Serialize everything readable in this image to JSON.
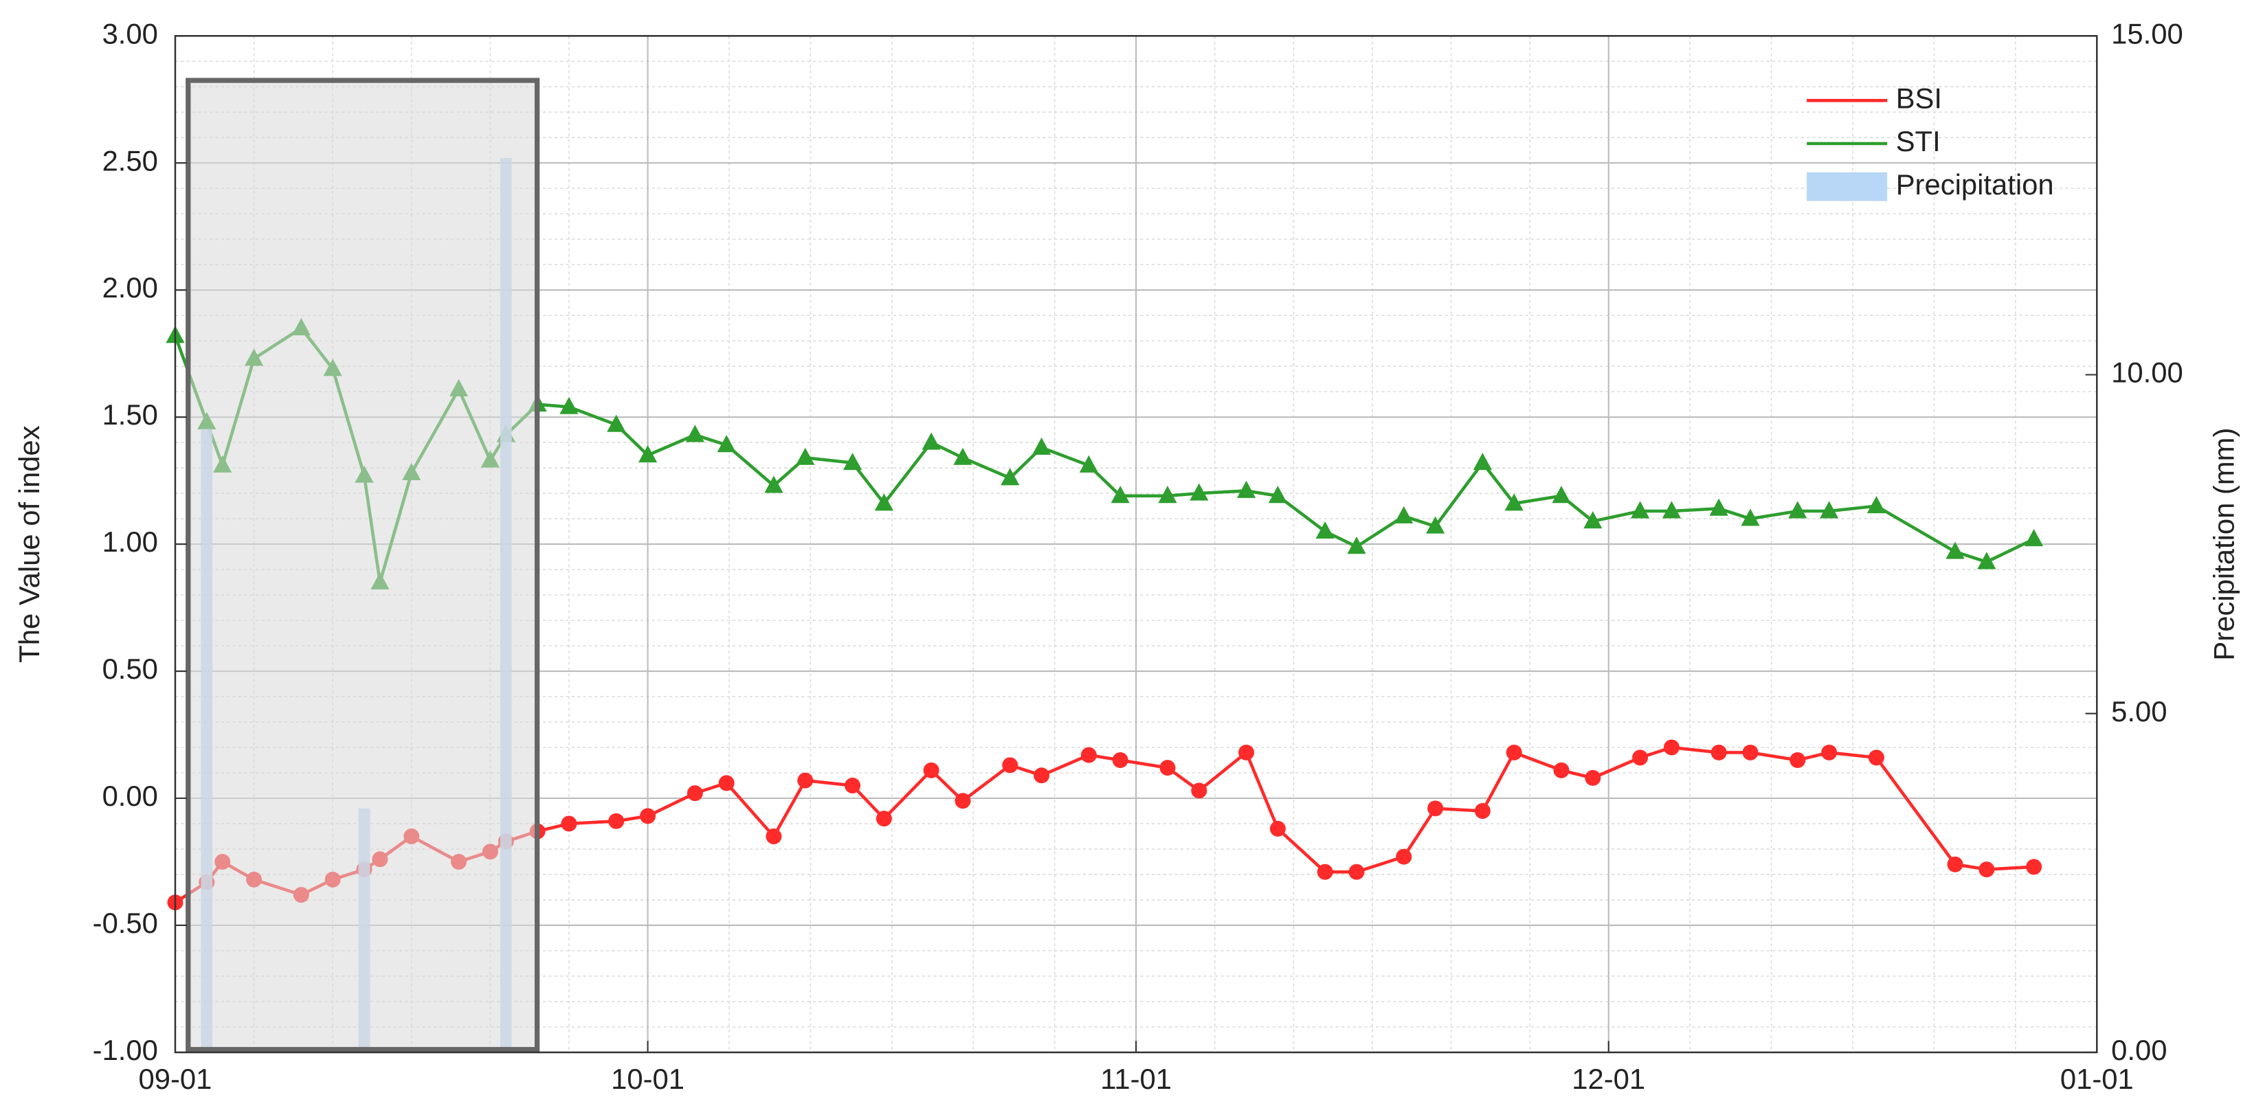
{
  "chart_data": {
    "type": "line",
    "x": [
      0,
      2,
      3,
      5,
      8,
      10,
      12,
      13,
      15,
      18,
      20,
      21,
      23,
      25,
      28,
      30,
      33,
      35,
      38,
      40,
      43,
      45,
      48,
      50,
      53,
      55,
      58,
      60,
      63,
      65,
      68,
      70,
      73,
      75,
      78,
      80,
      83,
      85,
      88,
      90,
      93,
      95,
      98,
      100,
      103,
      105,
      108,
      113,
      115,
      118
    ],
    "xlim": [
      0,
      122
    ],
    "xticks": [
      {
        "value": 0,
        "label": "09-01"
      },
      {
        "value": 30,
        "label": "10-01"
      },
      {
        "value": 61,
        "label": "11-01"
      },
      {
        "value": 91,
        "label": "12-01"
      },
      {
        "value": 122,
        "label": "01-01"
      }
    ],
    "ylabel": "The Value of index",
    "ylim": [
      -1,
      3
    ],
    "yticks": [
      {
        "value": -1,
        "label": "-1.00"
      },
      {
        "value": -0.5,
        "label": "-0.50"
      },
      {
        "value": 0,
        "label": "0.00"
      },
      {
        "value": 0.5,
        "label": "0.50"
      },
      {
        "value": 1,
        "label": "1.00"
      },
      {
        "value": 1.5,
        "label": "1.50"
      },
      {
        "value": 2,
        "label": "2.00"
      },
      {
        "value": 2.5,
        "label": "2.50"
      },
      {
        "value": 3,
        "label": "3.00"
      }
    ],
    "y2label": "Precipitation (mm)",
    "y2lim": [
      0,
      15
    ],
    "y2ticks": [
      {
        "value": 0,
        "label": "0.00"
      },
      {
        "value": 5,
        "label": "5.00"
      },
      {
        "value": 10,
        "label": "10.00"
      },
      {
        "value": 15,
        "label": "15.00"
      }
    ],
    "grid": true,
    "minor_grid": true,
    "legend": "upper right",
    "series": [
      {
        "name": "BSI",
        "color": "#ff2a2a",
        "marker": "circle",
        "values": [
          -0.41,
          -0.33,
          -0.25,
          -0.32,
          -0.38,
          -0.32,
          -0.28,
          -0.24,
          -0.15,
          -0.25,
          -0.21,
          -0.17,
          -0.13,
          -0.1,
          -0.09,
          -0.07,
          0.02,
          0.06,
          -0.15,
          0.07,
          0.05,
          -0.08,
          0.11,
          -0.01,
          0.13,
          0.09,
          0.17,
          0.15,
          0.12,
          0.03,
          0.18,
          -0.12,
          -0.29,
          -0.29,
          -0.23,
          -0.04,
          -0.05,
          0.18,
          0.11,
          0.08,
          0.16,
          0.2,
          0.18,
          0.18,
          0.15,
          0.18,
          0.16,
          -0.26,
          -0.28,
          -0.27
        ]
      },
      {
        "name": "STI",
        "color": "#2e9e2e",
        "marker": "triangle",
        "values": [
          1.82,
          1.48,
          1.31,
          1.73,
          1.85,
          1.69,
          1.27,
          0.85,
          1.28,
          1.61,
          1.33,
          1.43,
          1.55,
          1.54,
          1.47,
          1.35,
          1.43,
          1.39,
          1.23,
          1.34,
          1.32,
          1.16,
          1.4,
          1.34,
          1.26,
          1.38,
          1.31,
          1.19,
          1.19,
          1.2,
          1.21,
          1.19,
          1.05,
          0.99,
          1.11,
          1.07,
          1.32,
          1.16,
          1.19,
          1.09,
          1.13,
          1.13,
          1.14,
          1.1,
          1.13,
          1.13,
          1.15,
          0.97,
          0.93,
          1.02
        ]
      },
      {
        "name": "Precipitation",
        "color": "#b8d6f5",
        "type": "bar",
        "axis": "y2",
        "x": [
          2,
          12,
          21
        ],
        "values": [
          9.2,
          3.6,
          13.2
        ]
      }
    ]
  }
}
